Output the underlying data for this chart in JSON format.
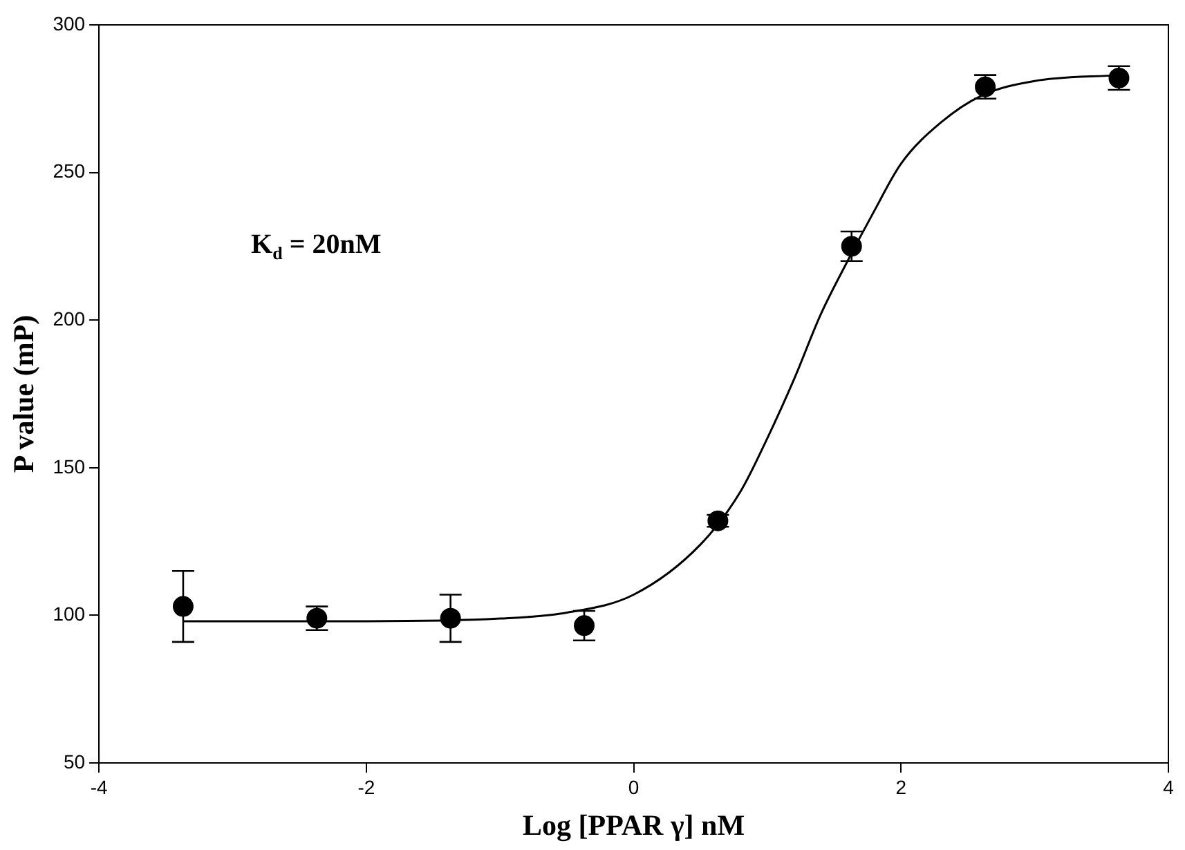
{
  "chart_data": {
    "type": "scatter",
    "xlabel": "Log [PPAR γ] nM",
    "ylabel": "P value (mP)",
    "annotations": [
      "K$_{d}$ = 20nM"
    ],
    "xlim": [
      -4,
      4
    ],
    "xticks": [
      -4,
      -2,
      0,
      2,
      4
    ],
    "ylim": [
      50,
      300
    ],
    "yticks": [
      50,
      100,
      150,
      200,
      250,
      300
    ],
    "grid": false,
    "legend": false,
    "marker": "circle",
    "series": [
      {
        "color": "#000000",
        "x": [
          -3.37,
          -2.37,
          -1.37,
          -0.37,
          0.63,
          1.63,
          2.63,
          3.63
        ],
        "values": [
          103,
          99,
          99,
          96.5,
          132,
          225,
          279,
          282
        ],
        "errors": [
          12,
          4,
          8,
          5,
          2,
          5,
          4,
          4
        ]
      },
      {
        "type": "line",
        "color": "#000000",
        "marker": "none",
        "x": [
          -3.37,
          -2,
          -1,
          -0.5,
          0,
          0.5,
          0.8,
          1.0,
          1.2,
          1.4,
          1.6,
          1.8,
          2.0,
          2.3,
          2.6,
          3.0,
          3.63
        ],
        "values": [
          98,
          98,
          98.9,
          100.9,
          107,
          124,
          142,
          160,
          180,
          202,
          220,
          237,
          253,
          267,
          276,
          281,
          283
        ]
      }
    ]
  }
}
